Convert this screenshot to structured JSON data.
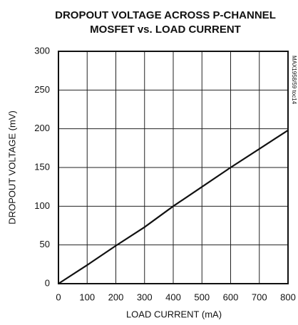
{
  "chart_data": {
    "type": "line",
    "title": [
      "DROPOUT VOLTAGE ACROSS P-CHANNEL",
      "MOSFET vs. LOAD CURRENT"
    ],
    "xlabel": "LOAD CURRENT (mA)",
    "ylabel": "DROPOUT VOLTAGE (mV)",
    "annotation": "MAX1958/59 toc14",
    "x": [
      0,
      100,
      200,
      300,
      400,
      500,
      600,
      700,
      800
    ],
    "series": [
      {
        "color": "#111111",
        "values": [
          0,
          24,
          49,
          73,
          100,
          125,
          150,
          174,
          198
        ]
      }
    ],
    "xlim": [
      0,
      800
    ],
    "xticks": [
      0,
      100,
      200,
      300,
      400,
      500,
      600,
      700,
      800
    ],
    "ylim": [
      0,
      300
    ],
    "yticks": [
      0,
      50,
      100,
      150,
      200,
      250,
      300
    ],
    "grid": true
  }
}
